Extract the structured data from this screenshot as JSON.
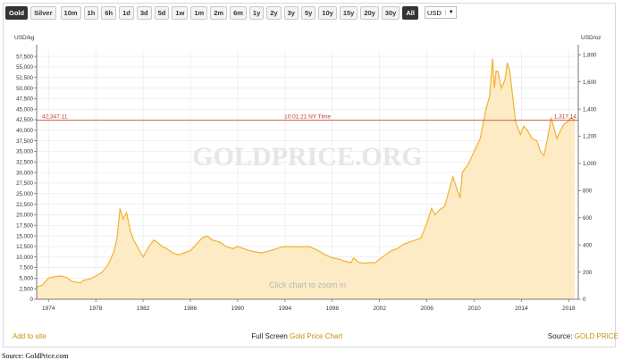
{
  "toolbar": {
    "metals": [
      "Gold",
      "Silver"
    ],
    "ranges": [
      "10m",
      "1h",
      "6h",
      "1d",
      "3d",
      "5d",
      "1w",
      "1m",
      "2m",
      "6m",
      "1y",
      "2y",
      "3y",
      "5y",
      "10y",
      "15y",
      "20y",
      "30y",
      "All"
    ],
    "active_metal": "Gold",
    "active_range": "All",
    "currency": "USD"
  },
  "chart_data": {
    "type": "area",
    "left_axis_unit": "USD/kg",
    "right_axis_unit": "USD/oz",
    "watermark": "GOLDPRICE.ORG",
    "hint": "Click chart to zoom in",
    "xlim": [
      1973.0,
      2018.8
    ],
    "ylim_left": [
      0,
      59000
    ],
    "ylim_right": [
      0,
      1835
    ],
    "left_ticks": [
      0,
      2500,
      5000,
      7500,
      10000,
      12500,
      15000,
      17500,
      20000,
      22500,
      25000,
      27500,
      30000,
      32500,
      35000,
      37500,
      40000,
      42500,
      45000,
      47500,
      50000,
      52500,
      55000,
      57500
    ],
    "left_tick_labels": [
      "0",
      "2,500",
      "5,000",
      "7,500",
      "10,000",
      "12,500",
      "15,000",
      "17,500",
      "20,000",
      "22,500",
      "25,000",
      "27,500",
      "30,000",
      "32,500",
      "35,000",
      "37,500",
      "40,000",
      "42,500",
      "45,000",
      "47,500",
      "50,000",
      "52,500",
      "55,000",
      "57,500"
    ],
    "right_ticks": [
      0,
      200,
      400,
      600,
      800,
      1000,
      1200,
      1400,
      1600,
      1800
    ],
    "right_tick_labels": [
      "0",
      "200",
      "400",
      "600",
      "800",
      "1,000",
      "1,200",
      "1,400",
      "1,600",
      "1,800"
    ],
    "x_ticks": [
      1974,
      1978,
      1982,
      1986,
      1990,
      1994,
      1998,
      2002,
      2006,
      2010,
      2014,
      2018
    ],
    "x_tick_labels": [
      "1974",
      "1978",
      "1982",
      "1986",
      "1990",
      "1994",
      "1998",
      "2002",
      "2006",
      "2010",
      "2014",
      "2018"
    ],
    "current_line": {
      "value_kg": 42347.11,
      "label_kg": "42,347.11",
      "label_oz": "1,317.14",
      "time_label": "10:01:21 NY Time"
    },
    "series": [
      {
        "unit": "USD/kg",
        "x": [
          1973.0,
          1973.5,
          1974.0,
          1974.5,
          1975.0,
          1975.5,
          1976.0,
          1976.7,
          1977.0,
          1977.5,
          1978.0,
          1978.5,
          1979.0,
          1979.5,
          1979.8,
          1980.05,
          1980.3,
          1980.6,
          1980.9,
          1981.2,
          1981.6,
          1982.0,
          1982.5,
          1982.9,
          1983.2,
          1983.6,
          1984.0,
          1984.5,
          1985.0,
          1985.5,
          1986.0,
          1986.5,
          1987.0,
          1987.4,
          1987.9,
          1988.5,
          1989.0,
          1989.6,
          1990.0,
          1990.5,
          1991.0,
          1991.5,
          1992.0,
          1992.5,
          1993.0,
          1993.6,
          1994.0,
          1995.0,
          1996.0,
          1996.6,
          1997.0,
          1997.5,
          1998.0,
          1998.6,
          1999.0,
          1999.6,
          1999.8,
          2000.2,
          2000.7,
          2001.2,
          2001.6,
          2002.0,
          2002.5,
          2003.0,
          2003.5,
          2004.0,
          2004.5,
          2005.0,
          2005.5,
          2006.0,
          2006.4,
          2006.7,
          2007.0,
          2007.5,
          2008.0,
          2008.2,
          2008.8,
          2009.0,
          2009.5,
          2010.0,
          2010.5,
          2011.0,
          2011.3,
          2011.55,
          2011.7,
          2011.85,
          2012.0,
          2012.3,
          2012.6,
          2012.8,
          2013.0,
          2013.3,
          2013.5,
          2013.9,
          2014.2,
          2014.5,
          2014.9,
          2015.3,
          2015.6,
          2015.9,
          2016.2,
          2016.5,
          2016.8,
          2017.0,
          2017.3,
          2017.6,
          2017.9,
          2018.2,
          2018.5
        ],
        "values": [
          2900,
          3400,
          5000,
          5300,
          5500,
          5200,
          4200,
          3900,
          4500,
          4800,
          5500,
          6300,
          8000,
          11000,
          14500,
          21500,
          19000,
          20500,
          16500,
          14000,
          12000,
          10000,
          12500,
          14000,
          13500,
          12500,
          12000,
          11000,
          10500,
          11000,
          11500,
          13000,
          14500,
          15000,
          14000,
          13500,
          12500,
          12000,
          12500,
          12000,
          11500,
          11200,
          11000,
          11300,
          11700,
          12300,
          12500,
          12400,
          12500,
          11800,
          11200,
          10400,
          9800,
          9500,
          9000,
          8700,
          9800,
          8800,
          8500,
          8700,
          8600,
          9500,
          10500,
          11500,
          12000,
          13000,
          13500,
          14000,
          14500,
          18000,
          21500,
          20000,
          21000,
          22000,
          27000,
          29000,
          24000,
          30000,
          32000,
          35000,
          38000,
          45000,
          48000,
          57000,
          50000,
          54000,
          54000,
          50000,
          52000,
          56000,
          54000,
          47000,
          42000,
          39000,
          41000,
          40000,
          38000,
          37500,
          35000,
          34000,
          38000,
          43000,
          40000,
          38000,
          40000,
          41500,
          42000,
          43000,
          42300
        ]
      }
    ]
  },
  "footer": {
    "add_to_site": "Add to site",
    "fullscreen_prefix": "Full Screen ",
    "fullscreen_link": "Gold Price Chart",
    "source_prefix": "Source: ",
    "source_link": "GOLD PRICE"
  },
  "caption": "Source: GoldPrice.com",
  "colors": {
    "line": "#f2b233",
    "fill": "#fcebc4",
    "current_line": "#c0392b",
    "link": "#c8900e",
    "grid": "#e6e6e6"
  }
}
